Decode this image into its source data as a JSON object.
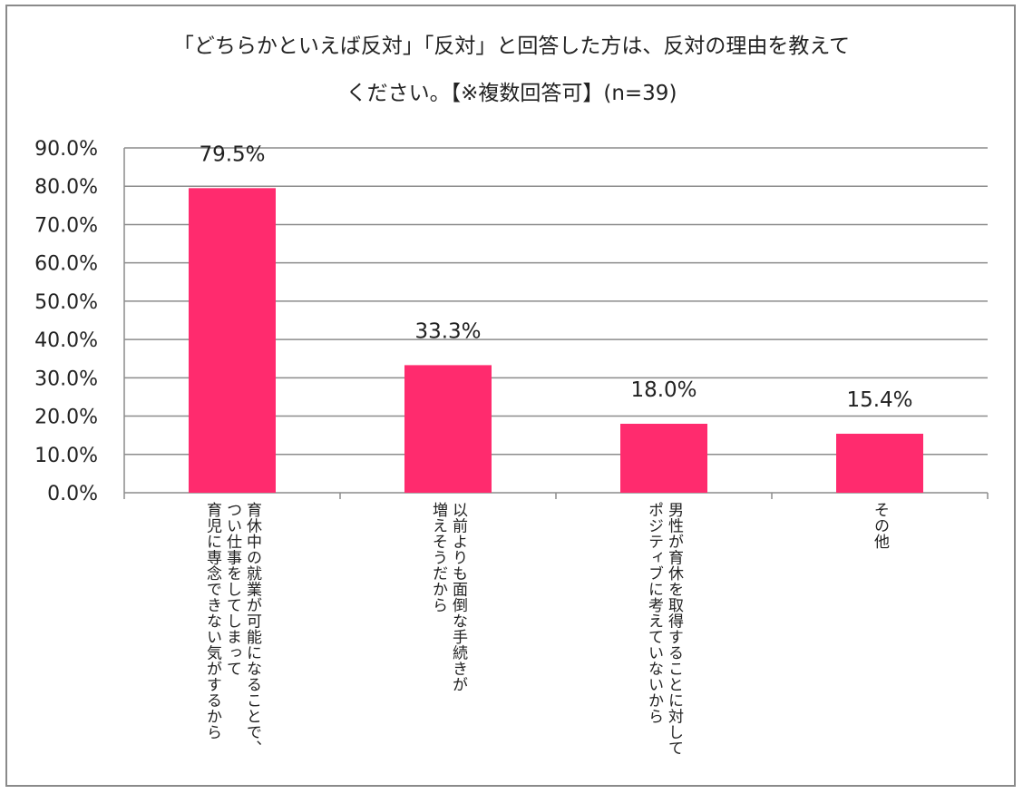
{
  "title_line1": "「どちらかといえば反対」「反対」と回答した方は、反対の理由を教えて",
  "title_line2": "ください。【※複数回答可】(n=39)",
  "chart_data": {
    "type": "bar",
    "title": "「どちらかといえば反対」「反対」と回答した方は、反対の理由を教えて ください。【※複数回答可】(n=39)",
    "categories": [
      "育休中の就業が可能になることで、\nつい仕事をしてしまって\n育児に専念できない気がするから",
      "以前よりも面倒な手続きが\n増えそうだから",
      "男性が育休を取得することに対して\nポジティブに考えていないから",
      "その他"
    ],
    "values": [
      79.5,
      33.3,
      18.0,
      15.4
    ],
    "data_labels": [
      "79.5%",
      "33.3%",
      "18.0%",
      "15.4%"
    ],
    "y_ticks": [
      "0.0%",
      "10.0%",
      "20.0%",
      "30.0%",
      "40.0%",
      "50.0%",
      "60.0%",
      "70.0%",
      "80.0%",
      "90.0%"
    ],
    "ylim": [
      0,
      90
    ],
    "grid": true,
    "legend": "none",
    "bar_color": "#ff2b6e",
    "grid_color": "#8c8c8c"
  }
}
